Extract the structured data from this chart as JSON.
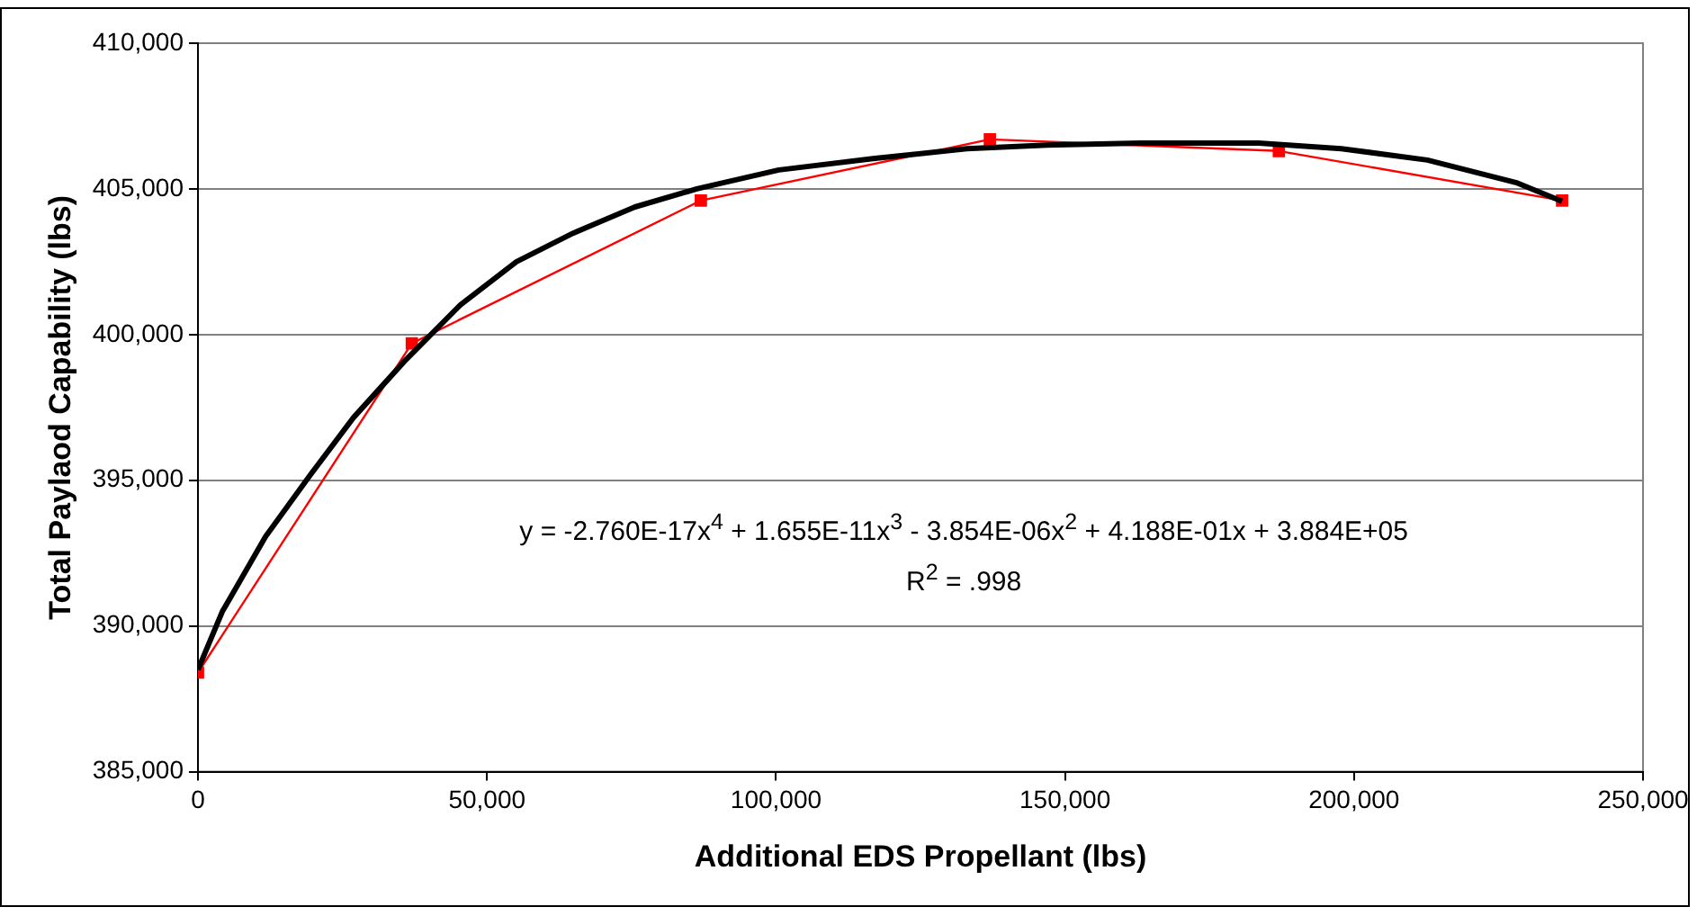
{
  "chart_data": {
    "type": "line",
    "xlabel": "Additional EDS Propellant (lbs)",
    "ylabel": "Total Paylaod Capability (lbs)",
    "xlim": [
      0,
      250000
    ],
    "xticks": [
      {
        "value": 0,
        "label": "0"
      },
      {
        "value": 50000,
        "label": "50,000"
      },
      {
        "value": 100000,
        "label": "100,000"
      },
      {
        "value": 150000,
        "label": "150,000"
      },
      {
        "value": 200000,
        "label": "200,000"
      },
      {
        "value": 250000,
        "label": "250,000"
      }
    ],
    "ylim": [
      385000,
      410000
    ],
    "yticks": [
      {
        "value": 385000,
        "label": "385,000"
      },
      {
        "value": 390000,
        "label": "390,000"
      },
      {
        "value": 395000,
        "label": "395,000"
      },
      {
        "value": 400000,
        "label": "400,000"
      },
      {
        "value": 405000,
        "label": "405,000"
      },
      {
        "value": 410000,
        "label": "410,000"
      }
    ],
    "grid": "y",
    "legend": false,
    "series": [
      {
        "color": "#000000",
        "marker": "none",
        "x": [
          0,
          4200,
          11700,
          19500,
          26900,
          35700,
          45400,
          55100,
          64900,
          75600,
          86300,
          100500,
          116800,
          133000,
          146900,
          163100,
          183500,
          197800,
          212700,
          228000,
          236000
        ],
        "values": [
          388500,
          390490,
          393070,
          395200,
          397150,
          399080,
          401020,
          402500,
          403480,
          404380,
          405000,
          405650,
          406040,
          406380,
          406500,
          406570,
          406570,
          406380,
          405990,
          405220,
          404570
        ]
      },
      {
        "color": "#ff0000",
        "marker": "square",
        "x": [
          0,
          37000,
          87000,
          137000,
          187000,
          236000
        ],
        "values": [
          388400,
          399700,
          404600,
          406700,
          406300,
          404600
        ]
      }
    ],
    "annotations": [
      "y = -2.760E-17x$^{4}$ + 1.655E-11x$^{3}$ - 3.854E-06x$^{2}$ + 4.188E-01x + 3.884E+05",
      "R$^{2}$ = .998"
    ]
  }
}
